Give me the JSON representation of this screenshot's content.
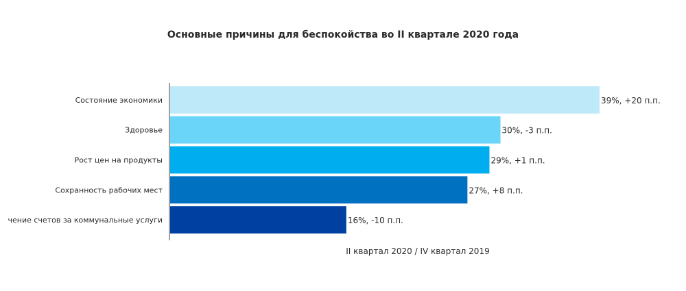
{
  "chart_data": {
    "type": "bar",
    "orientation": "horizontal",
    "title": "Основные причины для беспокойства во II квартале 2020 года",
    "categories": [
      "Состояние экономики",
      "Здоровье",
      "Рост цен на продукты",
      "Сохранность рабочих мест",
      "чение счетов за коммунальные услуги"
    ],
    "values": [
      39,
      30,
      29,
      27,
      16
    ],
    "data_labels": [
      "39%, +20 п.п.",
      "30%, -3 п.п.",
      "29%, +1 п.п.",
      "27%, +8 п.п.",
      "16%, -10 п.п."
    ],
    "colors": [
      "#bde9f8",
      "#6ad5f8",
      "#00aeef",
      "#0071c1",
      "#0040a0"
    ],
    "xlabel": "II квартал 2020 / IV квартал 2019",
    "ylabel": "",
    "xlim": [
      0,
      40
    ],
    "grid": false,
    "legend": "none"
  }
}
